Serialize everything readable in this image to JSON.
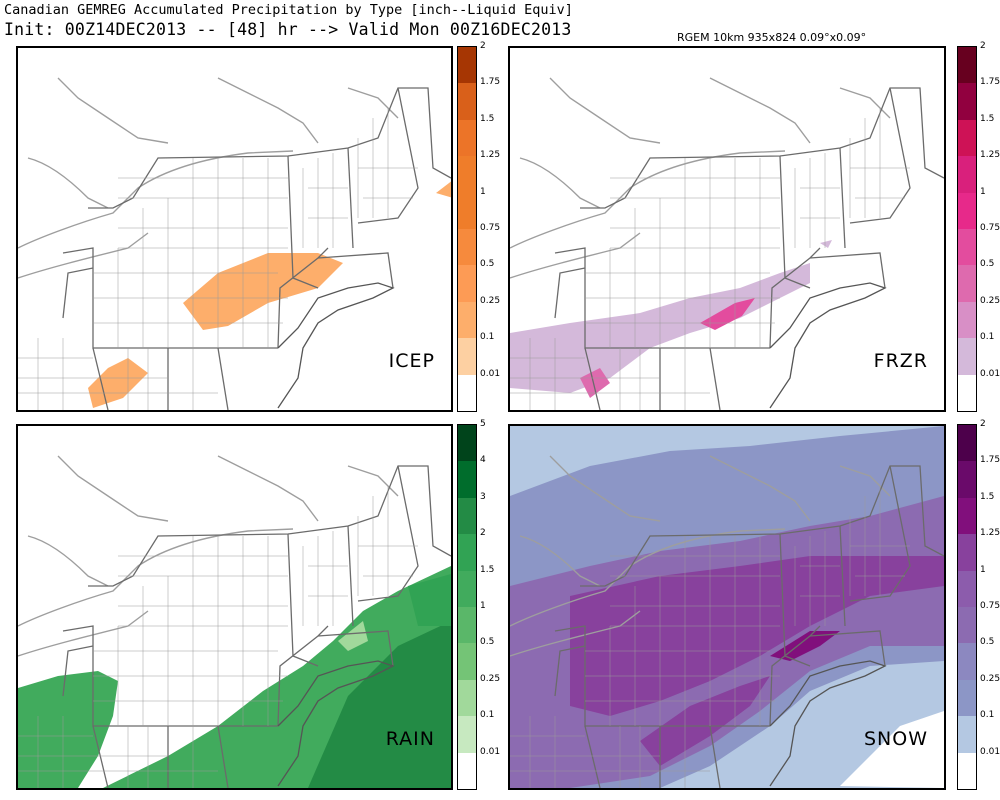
{
  "header": {
    "title": "Canadian GEMREG Accumulated Precipitation by Type [inch--Liquid Equiv]",
    "subtitle": "Init: 00Z14DEC2013 -- [48] hr --> Valid Mon 00Z16DEC2013",
    "grid_info": "RGEM 10km 935x824 0.09°x0.09°"
  },
  "panels": [
    {
      "id": "icep",
      "label": "ICEP",
      "scale_key": "standard",
      "colors": [
        "#ffffff",
        "#fdd0a2",
        "#fdae6b",
        "#fd9b55",
        "#f68a3d",
        "#ef7d2a",
        "#ef7d2a",
        "#ec7428",
        "#d9601a",
        "#a63603"
      ]
    },
    {
      "id": "frzr",
      "label": "FRZR",
      "scale_key": "standard",
      "colors": [
        "#ffffff",
        "#d4b9da",
        "#d88fc6",
        "#de6aae",
        "#e34c9e",
        "#e7298a",
        "#d9207c",
        "#ce1256",
        "#91003f",
        "#67001f"
      ]
    },
    {
      "id": "rain",
      "label": "RAIN",
      "scale_key": "rain",
      "colors": [
        "#ffffff",
        "#c7e9c0",
        "#a1d99b",
        "#74c476",
        "#5ab769",
        "#41ab5d",
        "#31a354",
        "#238b45",
        "#006d2c",
        "#00441b"
      ]
    },
    {
      "id": "snow",
      "label": "SNOW",
      "scale_key": "standard",
      "colors": [
        "#ffffff",
        "#b4c8e2",
        "#8c96c6",
        "#8c88c0",
        "#8c6bb1",
        "#8c5cac",
        "#88419d",
        "#810f7c",
        "#6a0a6a",
        "#4d004b"
      ]
    }
  ],
  "scales": {
    "standard": [
      "0.01",
      "0.1",
      "0.25",
      "0.5",
      "0.75",
      "1",
      "1.25",
      "1.5",
      "1.75",
      "2"
    ],
    "rain": [
      "0.01",
      "0.1",
      "0.25",
      "0.5",
      "1",
      "1.5",
      "2",
      "3",
      "4",
      "5"
    ]
  }
}
